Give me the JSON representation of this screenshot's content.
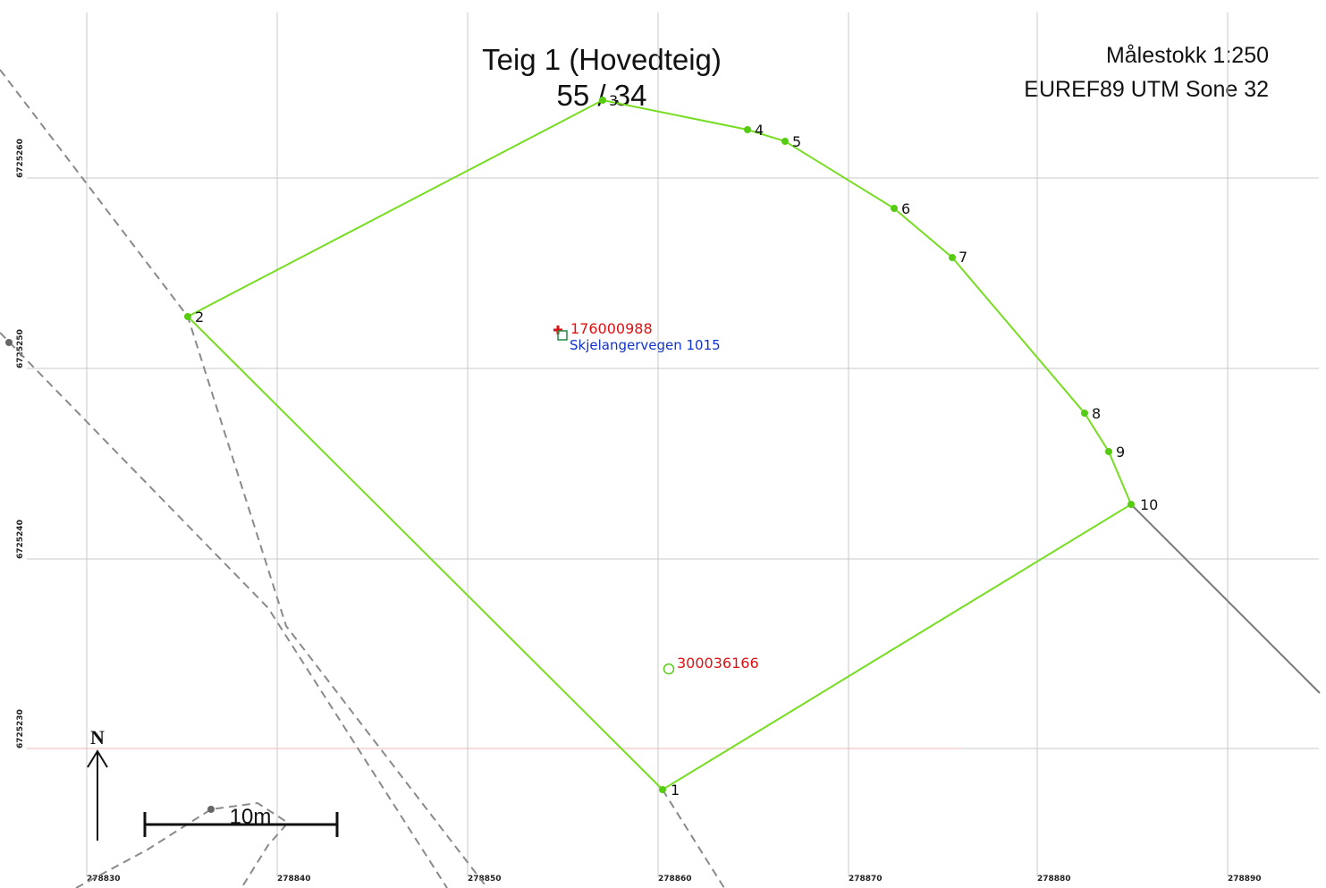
{
  "title": {
    "line1": "Teig 1 (Hovedteig)",
    "line2": "55 / 34"
  },
  "info": {
    "scale": "Målestokk 1:250",
    "crs": "EUREF89 UTM Sone 32"
  },
  "grid": {
    "x_labels": [
      "278830",
      "278840",
      "278850",
      "278860",
      "278870",
      "278880",
      "278890"
    ],
    "y_labels": [
      "6725260",
      "6725250",
      "6725240",
      "6725230"
    ]
  },
  "boundary_points": [
    {
      "label": "1"
    },
    {
      "label": "2"
    },
    {
      "label": "3"
    },
    {
      "label": "4"
    },
    {
      "label": "5"
    },
    {
      "label": "6"
    },
    {
      "label": "7"
    },
    {
      "label": "8"
    },
    {
      "label": "9"
    },
    {
      "label": "10"
    }
  ],
  "markers": {
    "parcel_id": "176000988",
    "address": "Skjelangervegen 1015",
    "building_id": "300036166"
  },
  "north_arrow": {
    "label": "N"
  },
  "scale_bar": {
    "label": "10m"
  },
  "colors": {
    "boundary": "#77dd22",
    "grid": "#bdbdbd",
    "dashed_line": "#8a8a8a",
    "marker_red": "#dd1111",
    "address_blue": "#1133cc"
  }
}
